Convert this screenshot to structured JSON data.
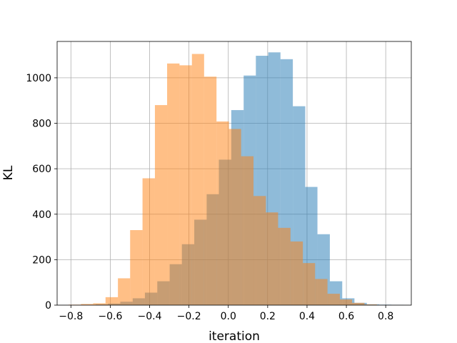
{
  "chart_data": {
    "type": "bar",
    "title": "",
    "xlabel": "iteration",
    "ylabel": "KL",
    "xlim": [
      -0.87,
      0.93
    ],
    "ylim": [
      0,
      1160
    ],
    "xticks": [
      -0.8,
      -0.6,
      -0.4,
      -0.2,
      0.0,
      0.2,
      0.4,
      0.6,
      0.8
    ],
    "xtick_labels": [
      "−0.8",
      "−0.6",
      "−0.4",
      "−0.2",
      "0.0",
      "0.2",
      "0.4",
      "0.6",
      "0.8"
    ],
    "yticks": [
      0,
      200,
      400,
      600,
      800,
      1000
    ],
    "ytick_labels": [
      "0",
      "200",
      "400",
      "600",
      "800",
      "1000"
    ],
    "grid": true,
    "legend": false,
    "series": [
      {
        "color": "#1f77b4",
        "alpha": 0.5,
        "bin_edges": [
          -0.674,
          -0.612,
          -0.549,
          -0.486,
          -0.424,
          -0.361,
          -0.298,
          -0.236,
          -0.173,
          -0.11,
          -0.048,
          0.015,
          0.078,
          0.14,
          0.203,
          0.265,
          0.328,
          0.391,
          0.453,
          0.516,
          0.579,
          0.641,
          0.704,
          0.767,
          0.829,
          0.892
        ],
        "values": [
          3,
          7,
          15,
          30,
          55,
          105,
          180,
          268,
          376,
          488,
          640,
          858,
          1010,
          1097,
          1112,
          1082,
          875,
          520,
          312,
          105,
          30,
          10,
          3,
          2,
          1
        ]
      },
      {
        "color": "#ff7f0e",
        "alpha": 0.5,
        "bin_edges": [
          -0.812,
          -0.749,
          -0.687,
          -0.624,
          -0.561,
          -0.499,
          -0.436,
          -0.373,
          -0.311,
          -0.248,
          -0.185,
          -0.123,
          -0.06,
          0.003,
          0.065,
          0.128,
          0.191,
          0.253,
          0.316,
          0.379,
          0.441,
          0.504,
          0.567,
          0.629,
          0.692,
          0.755
        ],
        "values": [
          2,
          5,
          8,
          35,
          118,
          330,
          558,
          880,
          1063,
          1055,
          1105,
          1005,
          808,
          775,
          655,
          480,
          408,
          340,
          280,
          185,
          115,
          50,
          25,
          10,
          3
        ]
      }
    ]
  }
}
